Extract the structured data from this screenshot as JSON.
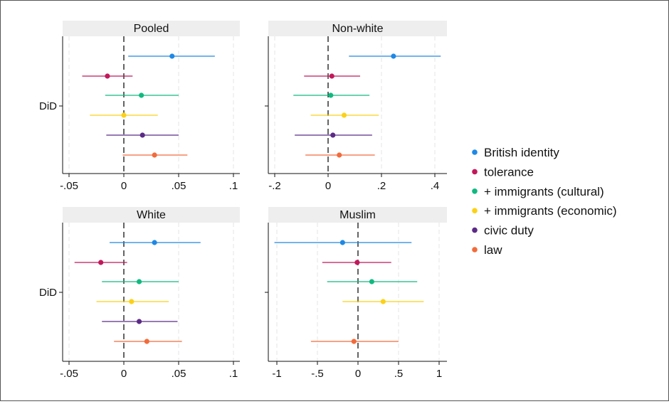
{
  "chart_data": [
    {
      "type": "scatter",
      "subtype": "coefficient-plot",
      "title": "Pooled",
      "ylabel_category": "DiD",
      "xlim": [
        -0.055,
        0.105
      ],
      "xticks": [
        -0.05,
        0,
        0.05,
        0.1
      ],
      "xtick_labels": [
        "-.05",
        "0",
        ".05",
        ".1"
      ],
      "reference_line": 0,
      "series": [
        {
          "name": "British identity",
          "color": "#1e88e5",
          "estimate": 0.044,
          "ci": [
            0.004,
            0.083
          ]
        },
        {
          "name": "tolerance",
          "color": "#c2185b",
          "estimate": -0.015,
          "ci": [
            -0.038,
            0.008
          ]
        },
        {
          "name": "+ immigrants (cultural)",
          "color": "#10b981",
          "estimate": 0.016,
          "ci": [
            -0.017,
            0.05
          ]
        },
        {
          "name": "+ immigrants (economic)",
          "color": "#fcd116",
          "estimate": 0.0,
          "ci": [
            -0.031,
            0.031
          ]
        },
        {
          "name": "civic duty",
          "color": "#5b2a86",
          "estimate": 0.017,
          "ci": [
            -0.016,
            0.05
          ]
        },
        {
          "name": "law",
          "color": "#f26b3a",
          "estimate": 0.028,
          "ci": [
            -0.001,
            0.058
          ]
        }
      ]
    },
    {
      "type": "scatter",
      "subtype": "coefficient-plot",
      "title": "Non-white",
      "ylabel_category": "DiD",
      "xlim": [
        -0.23,
        0.43
      ],
      "xticks": [
        -0.2,
        0,
        0.2,
        0.4
      ],
      "xtick_labels": [
        "-.2",
        "0",
        ".2",
        ".4"
      ],
      "reference_line": 0,
      "series": [
        {
          "name": "British identity",
          "color": "#1e88e5",
          "estimate": 0.245,
          "ci": [
            0.078,
            0.422
          ]
        },
        {
          "name": "tolerance",
          "color": "#c2185b",
          "estimate": 0.014,
          "ci": [
            -0.09,
            0.12
          ]
        },
        {
          "name": "+ immigrants (cultural)",
          "color": "#10b981",
          "estimate": 0.01,
          "ci": [
            -0.13,
            0.155
          ]
        },
        {
          "name": "+ immigrants (economic)",
          "color": "#fcd116",
          "estimate": 0.06,
          "ci": [
            -0.065,
            0.19
          ]
        },
        {
          "name": "civic duty",
          "color": "#5b2a86",
          "estimate": 0.018,
          "ci": [
            -0.125,
            0.165
          ]
        },
        {
          "name": "law",
          "color": "#f26b3a",
          "estimate": 0.042,
          "ci": [
            -0.085,
            0.175
          ]
        }
      ]
    },
    {
      "type": "scatter",
      "subtype": "coefficient-plot",
      "title": "White",
      "ylabel_category": "DiD",
      "xlim": [
        -0.055,
        0.105
      ],
      "xticks": [
        -0.05,
        0,
        0.05,
        0.1
      ],
      "xtick_labels": [
        "-.05",
        "0",
        ".05",
        ".1"
      ],
      "reference_line": 0,
      "series": [
        {
          "name": "British identity",
          "color": "#1e88e5",
          "estimate": 0.028,
          "ci": [
            -0.013,
            0.07
          ]
        },
        {
          "name": "tolerance",
          "color": "#c2185b",
          "estimate": -0.021,
          "ci": [
            -0.045,
            0.003
          ]
        },
        {
          "name": "+ immigrants (cultural)",
          "color": "#10b981",
          "estimate": 0.014,
          "ci": [
            -0.02,
            0.05
          ]
        },
        {
          "name": "+ immigrants (economic)",
          "color": "#fcd116",
          "estimate": 0.007,
          "ci": [
            -0.025,
            0.041
          ]
        },
        {
          "name": "civic duty",
          "color": "#5b2a86",
          "estimate": 0.014,
          "ci": [
            -0.02,
            0.049
          ]
        },
        {
          "name": "law",
          "color": "#f26b3a",
          "estimate": 0.021,
          "ci": [
            -0.009,
            0.053
          ]
        }
      ]
    },
    {
      "type": "scatter",
      "subtype": "coefficient-plot",
      "title": "Muslim",
      "ylabel_category": "DiD",
      "xlim": [
        -1.1,
        1.1
      ],
      "xticks": [
        -1,
        -0.5,
        0,
        0.5,
        1
      ],
      "xtick_labels": [
        "-1",
        "-.5",
        "0",
        ".5",
        "1"
      ],
      "reference_line": 0,
      "series": [
        {
          "name": "British identity",
          "color": "#1e88e5",
          "estimate": -0.19,
          "ci": [
            -1.03,
            0.66
          ]
        },
        {
          "name": "tolerance",
          "color": "#c2185b",
          "estimate": -0.01,
          "ci": [
            -0.44,
            0.41
          ]
        },
        {
          "name": "+ immigrants (cultural)",
          "color": "#10b981",
          "estimate": 0.17,
          "ci": [
            -0.38,
            0.73
          ]
        },
        {
          "name": "+ immigrants (economic)",
          "color": "#fcd116",
          "estimate": 0.31,
          "ci": [
            -0.19,
            0.81
          ]
        },
        {
          "name": "civic duty",
          "color": "#5b2a86",
          "estimate": null,
          "ci": null
        },
        {
          "name": "law",
          "color": "#f26b3a",
          "estimate": -0.05,
          "ci": [
            -0.58,
            0.5
          ]
        }
      ]
    }
  ],
  "legend": {
    "placement": "right",
    "items": [
      {
        "label": "British identity",
        "color": "#1e88e5"
      },
      {
        "label": "tolerance",
        "color": "#c2185b"
      },
      {
        "label": "+ immigrants (cultural)",
        "color": "#10b981"
      },
      {
        "label": "+ immigrants (economic)",
        "color": "#fcd116"
      },
      {
        "label": "civic duty",
        "color": "#5b2a86"
      },
      {
        "label": "law",
        "color": "#f26b3a"
      }
    ]
  },
  "grid": true,
  "colors": {
    "header_bg": "#eeeeee",
    "gridline": "#e6e6e6",
    "axis": "#111111"
  }
}
